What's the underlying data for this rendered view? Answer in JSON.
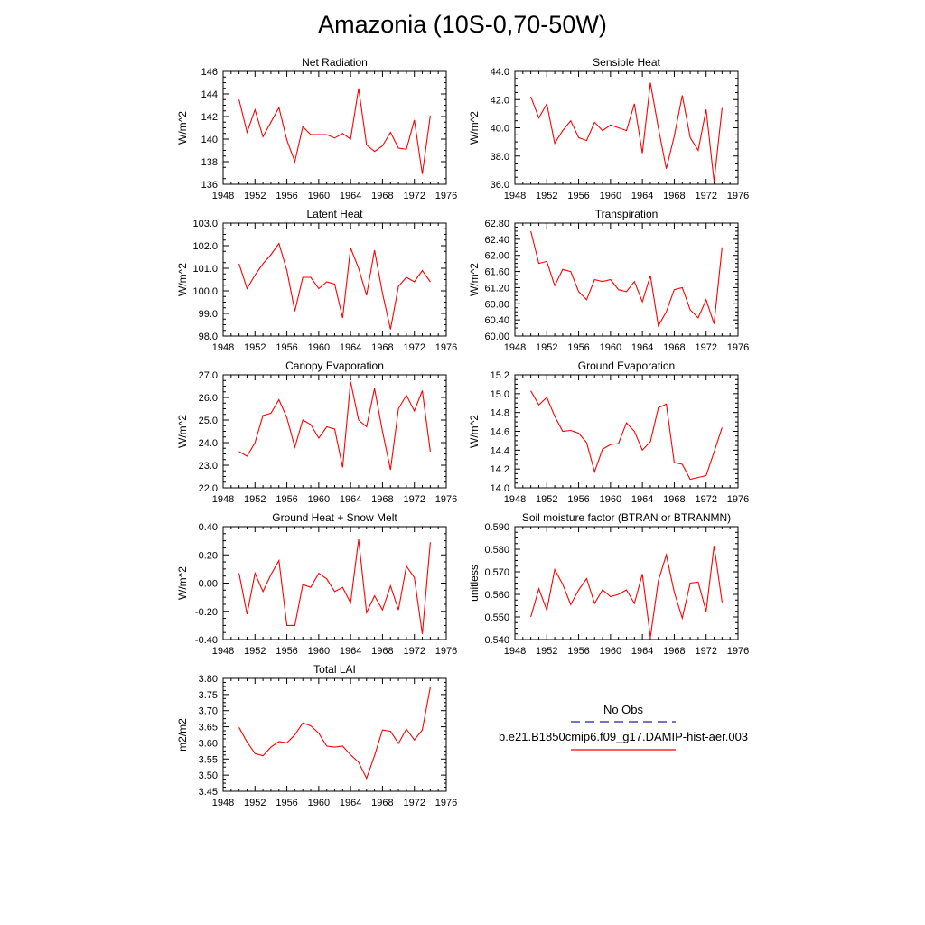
{
  "title": "Amazonia (10S-0,70-50W)",
  "legend": {
    "items": [
      {
        "label": "No Obs",
        "color": "#1f1fa8",
        "dash": true
      },
      {
        "label": "b.e21.B1850cmip6.f09_g17.DAMIP-hist-aer.003",
        "color": "#ff0000",
        "dash": false
      }
    ]
  },
  "chart_data": [
    {
      "type": "line",
      "title": "Net Radiation",
      "ylabel": "W/m^2",
      "ylim": [
        136,
        146
      ],
      "yticks": [
        "136",
        "138",
        "140",
        "142",
        "144",
        "146"
      ],
      "xlim": [
        1948,
        1976
      ],
      "xticks": [
        "1948",
        "1952",
        "1956",
        "1960",
        "1964",
        "1968",
        "1972",
        "1976"
      ],
      "color": "#ff0000",
      "x": [
        1950,
        1951,
        1952,
        1953,
        1954,
        1955,
        1956,
        1957,
        1958,
        1959,
        1960,
        1961,
        1962,
        1963,
        1964,
        1965,
        1966,
        1967,
        1968,
        1969,
        1970,
        1971,
        1972,
        1973,
        1974
      ],
      "values": [
        143.5,
        140.6,
        142.6,
        140.2,
        141.5,
        142.8,
        139.9,
        138.0,
        141.1,
        140.4,
        140.4,
        140.4,
        140.1,
        140.5,
        140.0,
        144.5,
        139.5,
        138.9,
        139.4,
        140.6,
        139.2,
        139.1,
        141.7,
        136.9,
        142.1
      ]
    },
    {
      "type": "line",
      "title": "Sensible Heat",
      "ylabel": "W/m^2",
      "ylim": [
        36,
        44
      ],
      "yticks": [
        "36.0",
        "38.0",
        "40.0",
        "42.0",
        "44.0"
      ],
      "xlim": [
        1948,
        1976
      ],
      "xticks": [
        "1948",
        "1952",
        "1956",
        "1960",
        "1964",
        "1968",
        "1972",
        "1976"
      ],
      "color": "#ff0000",
      "x": [
        1950,
        1951,
        1952,
        1953,
        1954,
        1955,
        1956,
        1957,
        1958,
        1959,
        1960,
        1961,
        1962,
        1963,
        1964,
        1965,
        1966,
        1967,
        1968,
        1969,
        1970,
        1971,
        1972,
        1973,
        1974
      ],
      "values": [
        42.2,
        40.7,
        41.7,
        38.9,
        39.8,
        40.5,
        39.3,
        39.1,
        40.4,
        39.8,
        40.2,
        40.0,
        39.8,
        41.7,
        38.2,
        43.2,
        40.0,
        37.1,
        39.4,
        42.3,
        39.3,
        38.4,
        41.3,
        36.2,
        41.4
      ]
    },
    {
      "type": "line",
      "title": "Latent Heat",
      "ylabel": "W/m^2",
      "ylim": [
        98,
        103
      ],
      "yticks": [
        "98.0",
        "99.0",
        "100.0",
        "101.0",
        "102.0",
        "103.0"
      ],
      "xlim": [
        1948,
        1976
      ],
      "xticks": [
        "1948",
        "1952",
        "1956",
        "1960",
        "1964",
        "1968",
        "1972",
        "1976"
      ],
      "color": "#ff0000",
      "x": [
        1950,
        1951,
        1952,
        1953,
        1954,
        1955,
        1956,
        1957,
        1958,
        1959,
        1960,
        1961,
        1962,
        1963,
        1964,
        1965,
        1966,
        1967,
        1968,
        1969,
        1970,
        1971,
        1972,
        1973,
        1974
      ],
      "values": [
        101.2,
        100.1,
        100.7,
        101.2,
        101.6,
        102.1,
        100.9,
        99.1,
        100.6,
        100.6,
        100.1,
        100.4,
        100.3,
        98.8,
        101.9,
        101.0,
        99.8,
        101.8,
        99.9,
        98.3,
        100.2,
        100.6,
        100.4,
        100.9,
        100.4
      ]
    },
    {
      "type": "line",
      "title": "Transpiration",
      "ylabel": "W/m^2",
      "ylim": [
        60.0,
        62.8
      ],
      "yticks": [
        "60.00",
        "60.40",
        "60.80",
        "61.20",
        "61.60",
        "62.00",
        "62.40",
        "62.80"
      ],
      "xlim": [
        1948,
        1976
      ],
      "xticks": [
        "1948",
        "1952",
        "1956",
        "1960",
        "1964",
        "1968",
        "1972",
        "1976"
      ],
      "color": "#ff0000",
      "x": [
        1950,
        1951,
        1952,
        1953,
        1954,
        1955,
        1956,
        1957,
        1958,
        1959,
        1960,
        1961,
        1962,
        1963,
        1964,
        1965,
        1966,
        1967,
        1968,
        1969,
        1970,
        1971,
        1972,
        1973,
        1974
      ],
      "values": [
        62.6,
        61.8,
        61.85,
        61.25,
        61.65,
        61.6,
        61.1,
        60.9,
        61.4,
        61.35,
        61.4,
        61.15,
        61.1,
        61.35,
        60.85,
        61.5,
        60.25,
        60.6,
        61.15,
        61.2,
        60.65,
        60.45,
        60.9,
        60.3,
        62.2
      ]
    },
    {
      "type": "line",
      "title": "Canopy Evaporation",
      "ylabel": "W/m^2",
      "ylim": [
        22,
        27
      ],
      "yticks": [
        "22.0",
        "23.0",
        "24.0",
        "25.0",
        "26.0",
        "27.0"
      ],
      "xlim": [
        1948,
        1976
      ],
      "xticks": [
        "1948",
        "1952",
        "1956",
        "1960",
        "1964",
        "1968",
        "1972",
        "1976"
      ],
      "color": "#ff0000",
      "x": [
        1950,
        1951,
        1952,
        1953,
        1954,
        1955,
        1956,
        1957,
        1958,
        1959,
        1960,
        1961,
        1962,
        1963,
        1964,
        1965,
        1966,
        1967,
        1968,
        1969,
        1970,
        1971,
        1972,
        1973,
        1974
      ],
      "values": [
        23.6,
        23.4,
        24.0,
        25.2,
        25.3,
        25.9,
        25.1,
        23.8,
        25.0,
        24.8,
        24.2,
        24.7,
        24.6,
        22.9,
        26.7,
        25.0,
        24.7,
        26.4,
        24.5,
        22.8,
        25.5,
        26.1,
        25.4,
        26.3,
        23.6
      ]
    },
    {
      "type": "line",
      "title": "Ground Evaporation",
      "ylabel": "W/m^2",
      "ylim": [
        14.0,
        15.2
      ],
      "yticks": [
        "14.0",
        "14.2",
        "14.4",
        "14.6",
        "14.8",
        "15.0",
        "15.2"
      ],
      "xlim": [
        1948,
        1976
      ],
      "xticks": [
        "1948",
        "1952",
        "1956",
        "1960",
        "1964",
        "1968",
        "1972",
        "1976"
      ],
      "color": "#ff0000",
      "x": [
        1950,
        1951,
        1952,
        1953,
        1954,
        1955,
        1956,
        1957,
        1958,
        1959,
        1960,
        1961,
        1962,
        1963,
        1964,
        1965,
        1966,
        1967,
        1968,
        1969,
        1970,
        1971,
        1972,
        1973,
        1974
      ],
      "values": [
        15.03,
        14.88,
        14.96,
        14.76,
        14.6,
        14.61,
        14.58,
        14.48,
        14.17,
        14.41,
        14.46,
        14.47,
        14.69,
        14.6,
        14.4,
        14.49,
        14.85,
        14.89,
        14.27,
        14.25,
        14.09,
        14.11,
        14.13,
        14.38,
        14.64
      ]
    },
    {
      "type": "line",
      "title": "Ground Heat + Snow Melt",
      "ylabel": "W/m^2",
      "ylim": [
        -0.4,
        0.4
      ],
      "yticks": [
        "-0.40",
        "-0.20",
        "0.00",
        "0.20",
        "0.40"
      ],
      "xlim": [
        1948,
        1976
      ],
      "xticks": [
        "1948",
        "1952",
        "1956",
        "1960",
        "1964",
        "1968",
        "1972",
        "1976"
      ],
      "color": "#ff0000",
      "x": [
        1950,
        1951,
        1952,
        1953,
        1954,
        1955,
        1956,
        1957,
        1958,
        1959,
        1960,
        1961,
        1962,
        1963,
        1964,
        1965,
        1966,
        1967,
        1968,
        1969,
        1970,
        1971,
        1972,
        1973,
        1974
      ],
      "values": [
        0.07,
        -0.22,
        0.07,
        -0.06,
        0.06,
        0.16,
        -0.3,
        -0.3,
        -0.01,
        -0.03,
        0.07,
        0.03,
        -0.06,
        -0.03,
        -0.14,
        0.31,
        -0.21,
        -0.09,
        -0.19,
        -0.02,
        -0.19,
        0.12,
        0.04,
        -0.36,
        0.29
      ]
    },
    {
      "type": "line",
      "title": "Soil moisture factor (BTRAN or BTRANMN)",
      "ylabel": "unitless",
      "ylim": [
        0.54,
        0.59
      ],
      "yticks": [
        "0.540",
        "0.550",
        "0.560",
        "0.570",
        "0.580",
        "0.590"
      ],
      "xlim": [
        1948,
        1976
      ],
      "xticks": [
        "1948",
        "1952",
        "1956",
        "1960",
        "1964",
        "1968",
        "1972",
        "1976"
      ],
      "color": "#ff0000",
      "x": [
        1950,
        1951,
        1952,
        1953,
        1954,
        1955,
        1956,
        1957,
        1958,
        1959,
        1960,
        1961,
        1962,
        1963,
        1964,
        1965,
        1966,
        1967,
        1968,
        1969,
        1970,
        1971,
        1972,
        1973,
        1974
      ],
      "values": [
        0.55,
        0.5625,
        0.553,
        0.571,
        0.5645,
        0.5555,
        0.562,
        0.567,
        0.556,
        0.562,
        0.559,
        0.56,
        0.562,
        0.556,
        0.569,
        0.541,
        0.566,
        0.5775,
        0.561,
        0.5495,
        0.565,
        0.5655,
        0.5525,
        0.5815,
        0.5565
      ]
    },
    {
      "type": "line",
      "title": "Total LAI",
      "ylabel": "m2/m2",
      "ylim": [
        3.45,
        3.8
      ],
      "yticks": [
        "3.45",
        "3.50",
        "3.55",
        "3.60",
        "3.65",
        "3.70",
        "3.75",
        "3.80"
      ],
      "xlim": [
        1948,
        1976
      ],
      "xticks": [
        "1948",
        "1952",
        "1956",
        "1960",
        "1964",
        "1968",
        "1972",
        "1976"
      ],
      "color": "#ff0000",
      "x": [
        1950,
        1951,
        1952,
        1953,
        1954,
        1955,
        1956,
        1957,
        1958,
        1959,
        1960,
        1961,
        1962,
        1963,
        1964,
        1965,
        1966,
        1967,
        1968,
        1969,
        1970,
        1971,
        1972,
        1973,
        1974
      ],
      "values": [
        3.648,
        3.603,
        3.567,
        3.56,
        3.587,
        3.604,
        3.6,
        3.625,
        3.662,
        3.653,
        3.63,
        3.59,
        3.587,
        3.59,
        3.563,
        3.54,
        3.49,
        3.56,
        3.64,
        3.636,
        3.598,
        3.643,
        3.609,
        3.64,
        3.773
      ]
    }
  ]
}
